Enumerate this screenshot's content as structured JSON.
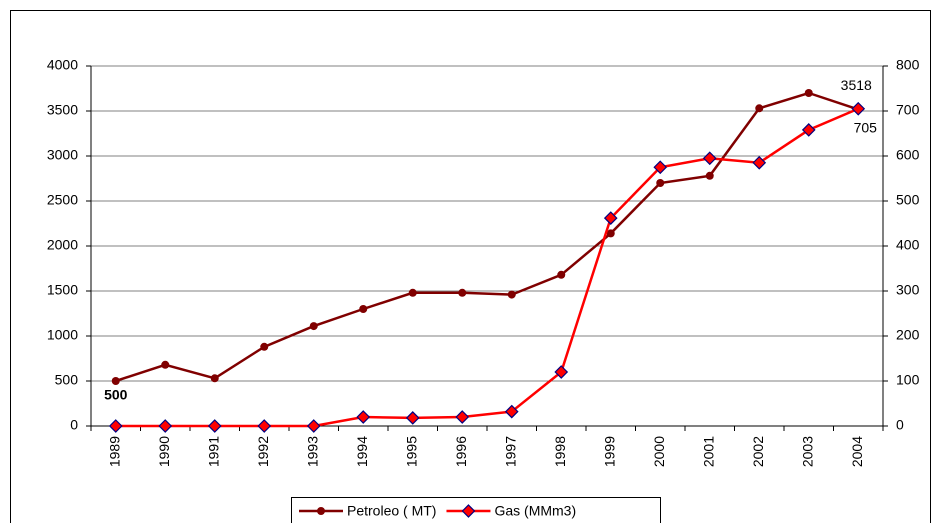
{
  "chart_data": {
    "type": "line",
    "categories": [
      "1989",
      "1990",
      "1991",
      "1992",
      "1993",
      "1994",
      "1995",
      "1996",
      "1997",
      "1998",
      "1999",
      "2000",
      "2001",
      "2002",
      "2003",
      "2004"
    ],
    "series": [
      {
        "name": "Petroleo ( MT)",
        "color": "#800000",
        "marker": "circle",
        "axis": "y",
        "values": [
          500,
          680,
          530,
          880,
          1110,
          1300,
          1480,
          1480,
          1460,
          1680,
          2140,
          2700,
          2780,
          3530,
          3700,
          3518
        ],
        "value_labels": [
          "500",
          null,
          null,
          null,
          null,
          null,
          null,
          null,
          null,
          null,
          null,
          null,
          null,
          null,
          null,
          "3518"
        ]
      },
      {
        "name": "Gas (MMm3)",
        "color": "#ff0000",
        "marker": "diamond",
        "axis": "y2",
        "values": [
          0,
          0,
          0,
          0,
          0,
          20,
          18,
          20,
          32,
          120,
          462,
          575,
          595,
          585,
          658,
          705
        ],
        "value_labels": [
          null,
          null,
          null,
          null,
          null,
          null,
          null,
          null,
          null,
          null,
          null,
          null,
          null,
          null,
          null,
          "705"
        ]
      }
    ],
    "ylim": [
      0,
      4000
    ],
    "yticks": [
      0,
      500,
      1000,
      1500,
      2000,
      2500,
      3000,
      3500,
      4000
    ],
    "y2lim": [
      0,
      800
    ],
    "y2ticks": [
      0,
      100,
      200,
      300,
      400,
      500,
      600,
      700,
      800
    ],
    "grid": true,
    "legend": "bottom"
  }
}
